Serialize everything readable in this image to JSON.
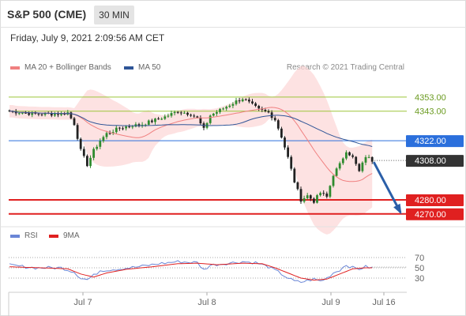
{
  "header": {
    "title": "S&P 500 (CME)",
    "timeframe": "30 MIN",
    "datetime": "Friday, July 9, 2021 2:09:56 AM CET"
  },
  "legend": {
    "ma20_label": "MA 20 + Bollinger Bands",
    "ma20_color": "#f08080",
    "ma50_label": "MA 50",
    "ma50_color": "#2f5597",
    "copyright": "Research © 2021 Trading Central"
  },
  "rsi_legend": {
    "rsi_label": "RSI",
    "rsi_color": "#6a86d6",
    "ma_label": "9MA",
    "ma_color": "#e02020"
  },
  "chart_data": [
    {
      "type": "candlestick",
      "ylim": [
        4262,
        4367
      ],
      "x_ticks": [
        "Jul 7",
        "Jul 8",
        "Jul 9",
        "Jul 16"
      ],
      "levels": [
        {
          "label": "4353.00",
          "value": 4353,
          "kind": "resistance",
          "color": "#9dc63a"
        },
        {
          "label": "4343.00",
          "value": 4343,
          "kind": "resistance",
          "color": "#9dc63a"
        },
        {
          "label": "4322.00",
          "value": 4322,
          "kind": "pivot",
          "color": "#2b6fdc"
        },
        {
          "label": "4308.00",
          "value": 4308,
          "kind": "last",
          "color": "#333333"
        },
        {
          "label": "4280.00",
          "value": 4280,
          "kind": "support",
          "color": "#e02020"
        },
        {
          "label": "4270.00",
          "value": 4270,
          "kind": "support",
          "color": "#e02020"
        }
      ],
      "anchors": [
        [
          0,
          4343
        ],
        [
          4,
          4342
        ],
        [
          8,
          4341
        ],
        [
          12,
          4341
        ],
        [
          16,
          4341
        ],
        [
          18,
          4342
        ],
        [
          20,
          4334
        ],
        [
          22,
          4315
        ],
        [
          24,
          4305
        ],
        [
          26,
          4315
        ],
        [
          28,
          4322
        ],
        [
          30,
          4327
        ],
        [
          34,
          4331
        ],
        [
          38,
          4333
        ],
        [
          40,
          4333
        ],
        [
          44,
          4336
        ],
        [
          48,
          4339
        ],
        [
          52,
          4343
        ],
        [
          56,
          4341
        ],
        [
          58,
          4338
        ],
        [
          60,
          4330
        ],
        [
          62,
          4340
        ],
        [
          66,
          4345
        ],
        [
          70,
          4350
        ],
        [
          72,
          4352
        ],
        [
          74,
          4349
        ],
        [
          77,
          4344
        ],
        [
          80,
          4342
        ],
        [
          82,
          4337
        ],
        [
          84,
          4325
        ],
        [
          86,
          4310
        ],
        [
          88,
          4293
        ],
        [
          90,
          4280
        ],
        [
          92,
          4283
        ],
        [
          94,
          4279
        ],
        [
          96,
          4285
        ],
        [
          98,
          4282
        ],
        [
          100,
          4298
        ],
        [
          102,
          4305
        ],
        [
          104,
          4315
        ],
        [
          106,
          4310
        ],
        [
          108,
          4300
        ],
        [
          110,
          4311
        ],
        [
          112,
          4308
        ]
      ],
      "forecast": {
        "from": 4308,
        "to": 4270
      }
    },
    {
      "type": "line",
      "title": "RSI",
      "y_ticks": [
        70,
        50,
        30
      ],
      "ylim": [
        10,
        90
      ],
      "rsi_anchors": [
        [
          0,
          55
        ],
        [
          8,
          50
        ],
        [
          16,
          50
        ],
        [
          20,
          42
        ],
        [
          22,
          30
        ],
        [
          24,
          27
        ],
        [
          26,
          35
        ],
        [
          28,
          45
        ],
        [
          34,
          48
        ],
        [
          40,
          52
        ],
        [
          46,
          58
        ],
        [
          52,
          62
        ],
        [
          58,
          60
        ],
        [
          60,
          46
        ],
        [
          62,
          55
        ],
        [
          66,
          58
        ],
        [
          72,
          62
        ],
        [
          76,
          60
        ],
        [
          80,
          52
        ],
        [
          84,
          38
        ],
        [
          86,
          30
        ],
        [
          88,
          24
        ],
        [
          90,
          22
        ],
        [
          94,
          28
        ],
        [
          96,
          24
        ],
        [
          98,
          30
        ],
        [
          100,
          40
        ],
        [
          102,
          46
        ],
        [
          104,
          56
        ],
        [
          106,
          50
        ],
        [
          108,
          48
        ],
        [
          110,
          52
        ],
        [
          112,
          50
        ]
      ],
      "ma_anchors": [
        [
          0,
          52
        ],
        [
          10,
          50
        ],
        [
          18,
          48
        ],
        [
          22,
          38
        ],
        [
          26,
          32
        ],
        [
          30,
          40
        ],
        [
          36,
          47
        ],
        [
          44,
          52
        ],
        [
          52,
          58
        ],
        [
          58,
          59
        ],
        [
          64,
          56
        ],
        [
          72,
          59
        ],
        [
          78,
          58
        ],
        [
          82,
          50
        ],
        [
          86,
          40
        ],
        [
          90,
          30
        ],
        [
          94,
          26
        ],
        [
          98,
          28
        ],
        [
          102,
          38
        ],
        [
          106,
          48
        ],
        [
          110,
          50
        ],
        [
          112,
          50
        ]
      ]
    }
  ]
}
